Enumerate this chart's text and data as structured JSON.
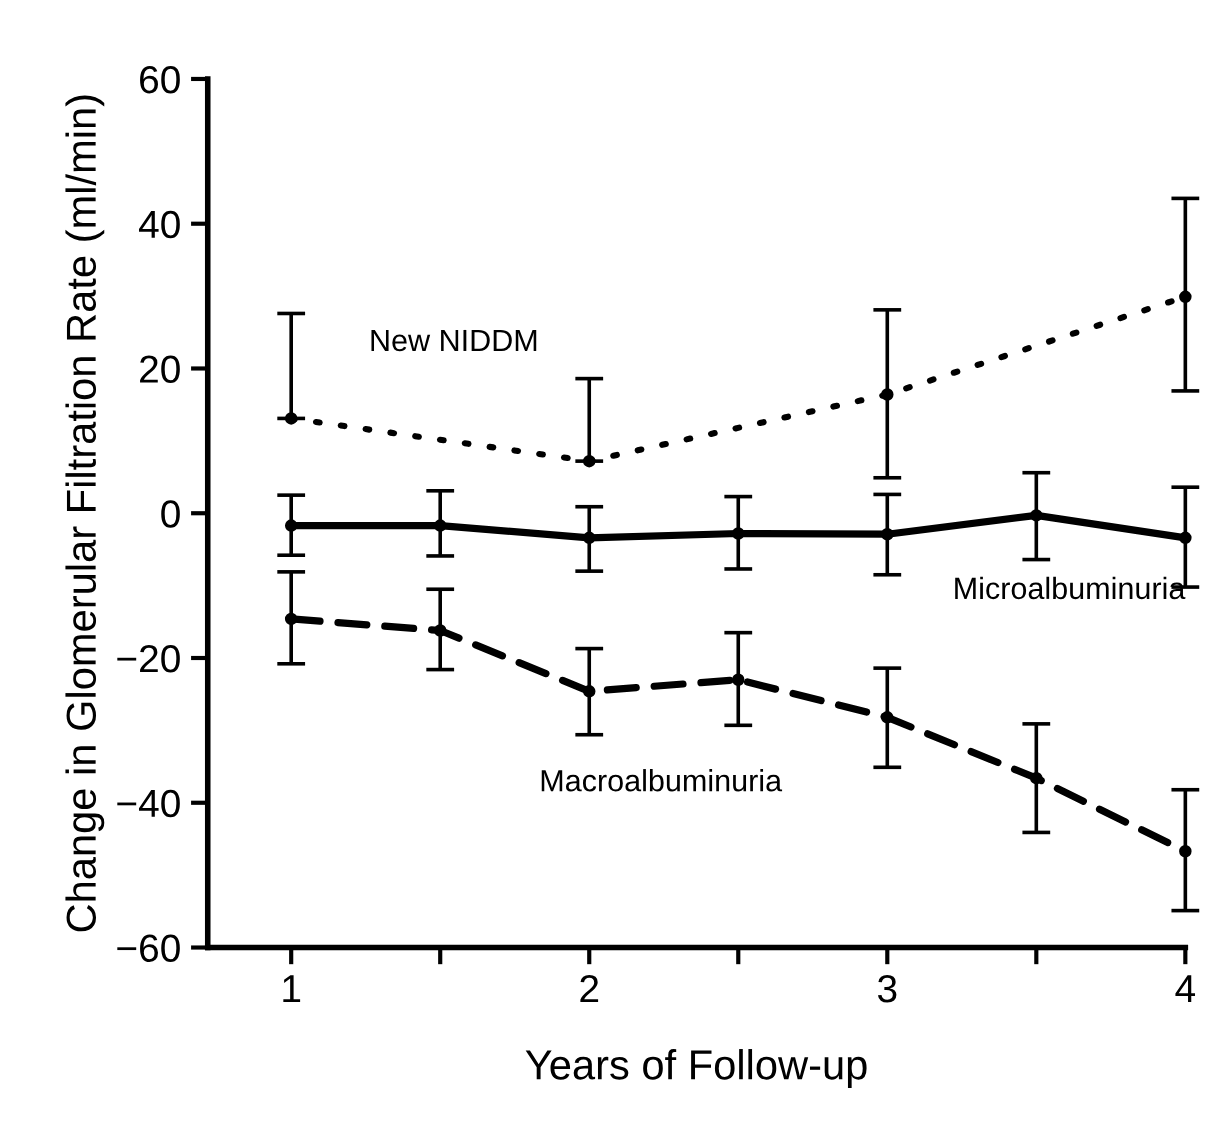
{
  "chart_data": {
    "type": "line",
    "xlabel": "Years of Follow-up",
    "ylabel": "Change in Glomerular Filtration Rate (ml/min)",
    "xlim": [
      0.72,
      4
    ],
    "ylim": [
      -60,
      60
    ],
    "xticks": [
      1,
      {
        "value": 1.5,
        "label": null
      },
      2,
      {
        "value": 2.5,
        "label": null
      },
      3,
      {
        "value": 3.5,
        "label": null
      },
      4
    ],
    "yticks": [
      -60,
      -40,
      -20,
      0,
      20,
      40,
      60
    ],
    "grid": false,
    "legend": false,
    "marker": "circle",
    "series": [
      {
        "name": "New NIDDM",
        "color": "#000000",
        "line_style": "dotted",
        "x": [
          1,
          2,
          3,
          4
        ],
        "values": [
          13.1,
          7.2,
          16.4,
          29.9
        ],
        "errors": [
          [
            13.1,
            27.6
          ],
          [
            7.2,
            18.6
          ],
          [
            4.9,
            28.1
          ],
          [
            16.9,
            43.5
          ]
        ]
      },
      {
        "name": "Microalbuminuria",
        "color": "#000000",
        "line_style": "solid",
        "x": [
          1,
          1.5,
          2,
          2.5,
          3,
          3.5,
          4
        ],
        "values": [
          -1.7,
          -1.7,
          -3.4,
          -2.8,
          -2.9,
          -0.3,
          -3.4
        ],
        "errors": [
          [
            -5.8,
            2.5
          ],
          [
            -5.9,
            3.1
          ],
          [
            -8.0,
            0.9
          ],
          [
            -7.7,
            2.3
          ],
          [
            -8.5,
            2.6
          ],
          [
            -6.4,
            5.6
          ],
          [
            -10.2,
            3.6
          ]
        ]
      },
      {
        "name": "Macroalbuminuria",
        "color": "#000000",
        "line_style": "dashed",
        "x": [
          1,
          1.5,
          2,
          2.5,
          3,
          3.5,
          4
        ],
        "values": [
          -14.6,
          -16.2,
          -24.6,
          -23.0,
          -28.2,
          -36.6,
          -46.7
        ],
        "errors": [
          [
            -20.8,
            -8.1
          ],
          [
            -21.6,
            -10.5
          ],
          [
            -30.6,
            -18.7
          ],
          [
            -29.3,
            -16.5
          ],
          [
            -35.1,
            -21.4
          ],
          [
            -44.1,
            -29.1
          ],
          [
            -54.9,
            -38.2
          ]
        ]
      }
    ]
  }
}
